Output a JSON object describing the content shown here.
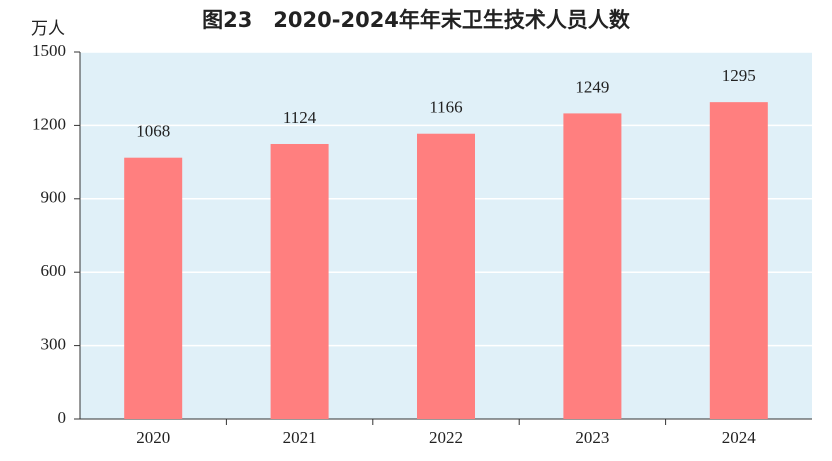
{
  "chart_data": {
    "type": "bar",
    "title": "图23　2020-2024年年末卫生技术人员人数",
    "y_label": "万人",
    "categories": [
      "2020",
      "2021",
      "2022",
      "2023",
      "2024"
    ],
    "values": [
      1068,
      1124,
      1166,
      1249,
      1295
    ],
    "color": "#ff7f7f",
    "background": "#e0f0f8",
    "ylim": [
      0,
      1500
    ],
    "yticks": [
      0,
      300,
      600,
      900,
      1200,
      1500
    ],
    "grid": true
  }
}
